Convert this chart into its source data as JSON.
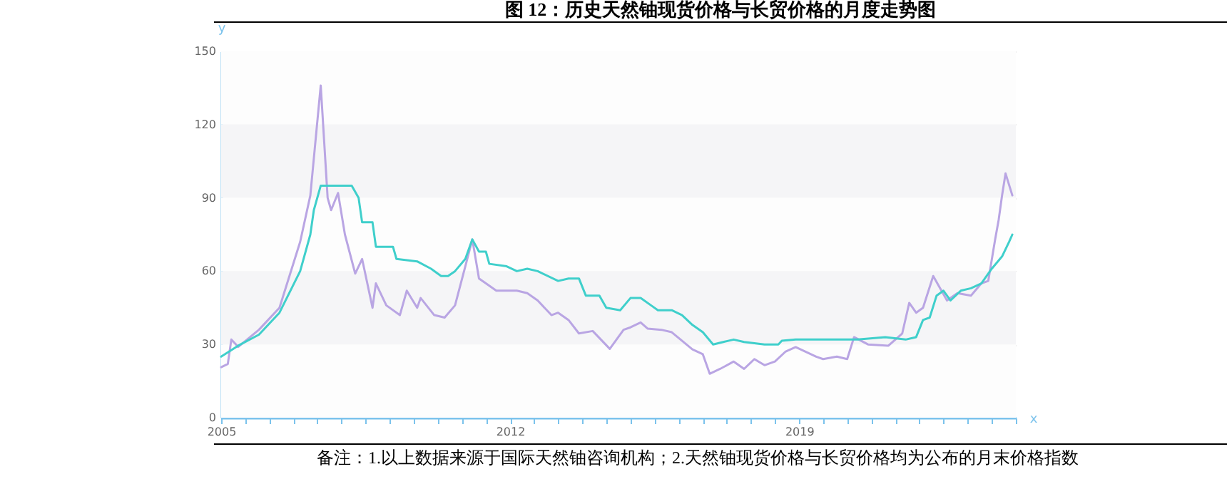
{
  "chart_data": {
    "type": "line",
    "title": "图 12：历史天然铀现货价格与长贸价格的月度走势图",
    "xlabel": "x",
    "ylabel": "y",
    "annotations": [
      "备注：1.以上数据来源于国际天然铀咨询机构；2.天然铀现货价格与长贸价格均为公布的月末价格指数"
    ],
    "xlim": [
      "2005-01",
      "2024-04"
    ],
    "xticks": [
      {
        "value": "2005-01",
        "label": "2005"
      },
      {
        "value": "2005-08",
        "label": null
      },
      {
        "value": "2006-03",
        "label": null
      },
      {
        "value": "2006-10",
        "label": null
      },
      {
        "value": "2007-05",
        "label": null
      },
      {
        "value": "2007-12",
        "label": null
      },
      {
        "value": "2008-07",
        "label": null
      },
      {
        "value": "2009-02",
        "label": null
      },
      {
        "value": "2009-09",
        "label": null
      },
      {
        "value": "2010-04",
        "label": null
      },
      {
        "value": "2010-11",
        "label": null
      },
      {
        "value": "2011-06",
        "label": null
      },
      {
        "value": "2012-01",
        "label": "2012"
      },
      {
        "value": "2012-08",
        "label": null
      },
      {
        "value": "2013-03",
        "label": null
      },
      {
        "value": "2013-10",
        "label": null
      },
      {
        "value": "2014-05",
        "label": null
      },
      {
        "value": "2014-12",
        "label": null
      },
      {
        "value": "2015-07",
        "label": null
      },
      {
        "value": "2016-02",
        "label": null
      },
      {
        "value": "2016-09",
        "label": null
      },
      {
        "value": "2017-04",
        "label": null
      },
      {
        "value": "2017-11",
        "label": null
      },
      {
        "value": "2018-06",
        "label": null
      },
      {
        "value": "2019-01",
        "label": "2019"
      },
      {
        "value": "2019-08",
        "label": null
      },
      {
        "value": "2020-03",
        "label": null
      },
      {
        "value": "2020-10",
        "label": null
      },
      {
        "value": "2021-05",
        "label": null
      },
      {
        "value": "2021-12",
        "label": null
      },
      {
        "value": "2022-07",
        "label": null
      },
      {
        "value": "2023-02",
        "label": null
      },
      {
        "value": "2023-09",
        "label": null
      },
      {
        "value": "2024-04",
        "label": null
      }
    ],
    "ylim": [
      0,
      150
    ],
    "yticks": [
      0,
      30,
      60,
      90,
      120,
      150
    ],
    "grid": "y",
    "series": [
      {
        "color": "#b9a5e3",
        "x": [
          "2005-01",
          "2005-03",
          "2005-04",
          "2005-06",
          "2005-12",
          "2006-06",
          "2006-12",
          "2007-03",
          "2007-06",
          "2007-08",
          "2007-09",
          "2007-11",
          "2008-01",
          "2008-04",
          "2008-06",
          "2008-09",
          "2008-10",
          "2009-01",
          "2009-05",
          "2009-07",
          "2009-10",
          "2009-11",
          "2010-03",
          "2010-06",
          "2010-09",
          "2010-12",
          "2011-02",
          "2011-04",
          "2011-06",
          "2011-09",
          "2012-03",
          "2012-06",
          "2012-09",
          "2013-01",
          "2013-03",
          "2013-06",
          "2013-09",
          "2014-01",
          "2014-06",
          "2014-10",
          "2014-12",
          "2015-03",
          "2015-05",
          "2015-09",
          "2015-12",
          "2016-06",
          "2016-09",
          "2016-11",
          "2017-02",
          "2017-06",
          "2017-09",
          "2017-12",
          "2018-03",
          "2018-06",
          "2018-09",
          "2018-12",
          "2019-06",
          "2019-08",
          "2019-12",
          "2020-03",
          "2020-05",
          "2020-09",
          "2021-03",
          "2021-05",
          "2021-07",
          "2021-09",
          "2021-11",
          "2022-01",
          "2022-04",
          "2022-08",
          "2022-11",
          "2023-03",
          "2023-06",
          "2023-08",
          "2023-10",
          "2023-11",
          "2023-12",
          "2024-01",
          "2024-03"
        ],
        "values": [
          20.7,
          22,
          32,
          29,
          36,
          45,
          72,
          91,
          136,
          90,
          85,
          92,
          75,
          59,
          65,
          45,
          55,
          46,
          42,
          52,
          45,
          49,
          42,
          41,
          46,
          62,
          73,
          57,
          55,
          52,
          52,
          51,
          48,
          42,
          43,
          40,
          34.5,
          35.5,
          28.2,
          36,
          37,
          39,
          36.5,
          36,
          35,
          28,
          26,
          18,
          20,
          23,
          20,
          24,
          21.5,
          23,
          27,
          28.9,
          25,
          24,
          25,
          24,
          33,
          30,
          29.5,
          32,
          34.5,
          47,
          43,
          45,
          58,
          48,
          51,
          50,
          55,
          56,
          73,
          81,
          91,
          100,
          91
        ]
      },
      {
        "color": "#3fcfcb",
        "x": [
          "2005-01",
          "2005-06",
          "2005-12",
          "2006-06",
          "2006-12",
          "2007-03",
          "2007-04",
          "2007-06",
          "2008-03",
          "2008-05",
          "2008-06",
          "2008-09",
          "2008-10",
          "2009-03",
          "2009-04",
          "2009-10",
          "2010-02",
          "2010-05",
          "2010-07",
          "2010-09",
          "2010-12",
          "2011-02",
          "2011-04",
          "2011-06",
          "2011-07",
          "2011-12",
          "2012-03",
          "2012-06",
          "2012-09",
          "2013-03",
          "2013-06",
          "2013-09",
          "2013-11",
          "2014-03",
          "2014-05",
          "2014-09",
          "2014-12",
          "2015-03",
          "2015-06",
          "2015-08",
          "2015-12",
          "2016-03",
          "2016-06",
          "2016-09",
          "2016-12",
          "2017-03",
          "2017-06",
          "2017-09",
          "2018-03",
          "2018-07",
          "2018-08",
          "2018-12",
          "2019-12",
          "2020-06",
          "2021-02",
          "2021-08",
          "2021-11",
          "2022-01",
          "2022-03",
          "2022-05",
          "2022-07",
          "2022-09",
          "2022-12",
          "2023-03",
          "2023-06",
          "2023-09",
          "2023-12",
          "2024-02",
          "2024-03"
        ],
        "values": [
          25,
          29.5,
          34,
          43,
          60,
          75,
          85,
          95,
          95,
          90,
          80,
          80,
          70,
          70,
          65,
          64,
          61,
          58,
          58,
          60,
          65,
          73,
          68,
          68,
          63,
          62,
          60,
          61,
          60,
          56,
          57,
          57,
          50,
          50,
          45,
          44,
          49,
          49,
          46,
          44,
          44,
          42,
          38,
          35,
          30,
          31,
          32,
          31,
          30,
          30,
          31.5,
          32,
          32,
          32,
          33,
          32,
          33,
          40,
          41,
          50,
          52,
          48,
          52,
          53,
          55,
          61,
          66,
          72,
          75
        ]
      }
    ]
  }
}
